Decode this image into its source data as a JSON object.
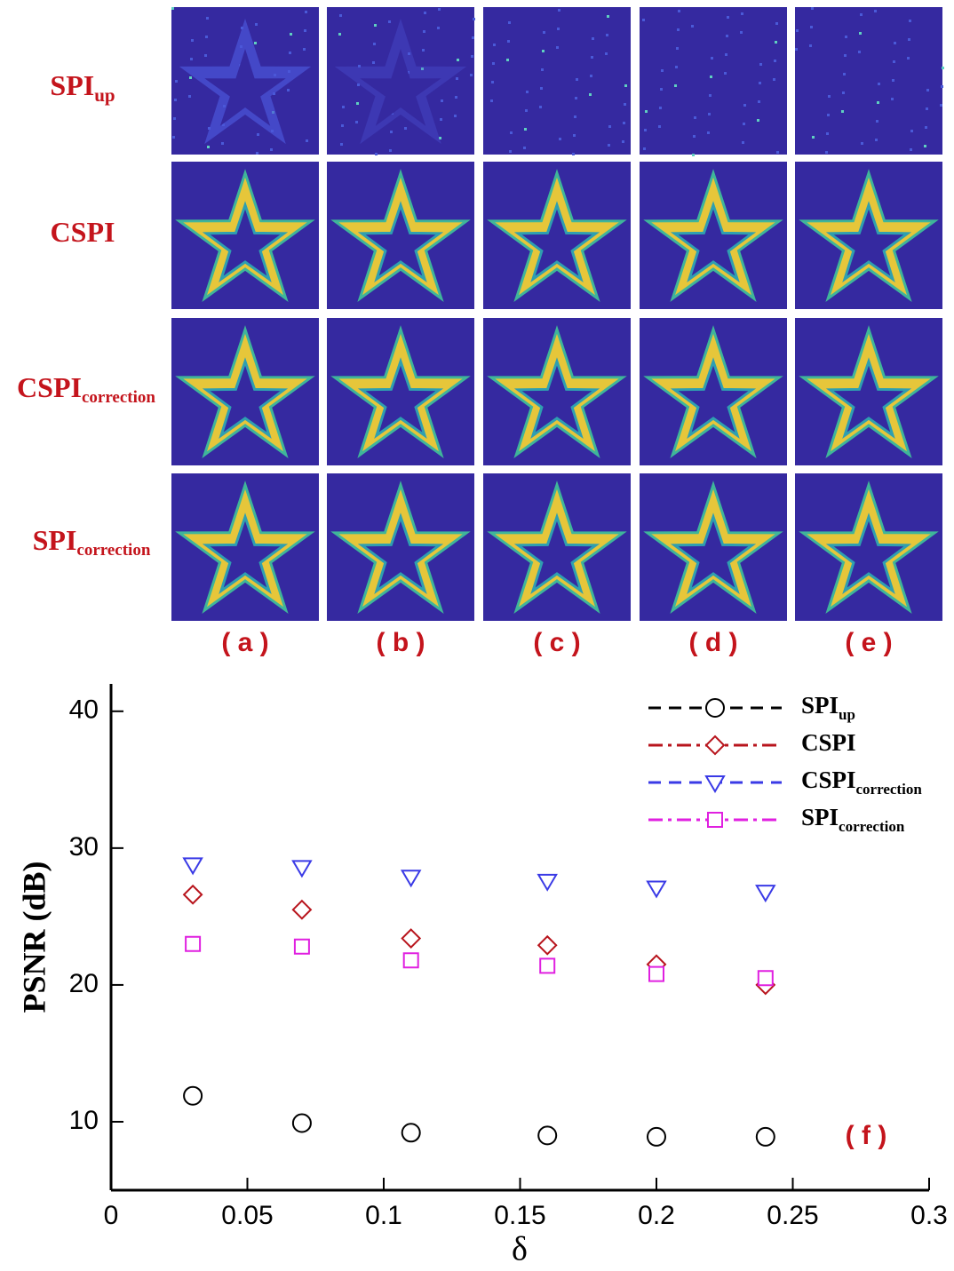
{
  "figure": {
    "row_labels": [
      {
        "main": "SPI",
        "sub": "up"
      },
      {
        "main": "CSPI",
        "sub": null
      },
      {
        "main": "CSPI",
        "sub": "correction"
      },
      {
        "main": "SPI",
        "sub": "correction"
      }
    ],
    "column_labels": [
      "( a )",
      "( b )",
      "( c )",
      "( d )",
      "( e )"
    ]
  },
  "chart_data": {
    "type": "line",
    "annotation": "( f )",
    "xlabel": "δ",
    "ylabel": "PSNR (dB)",
    "x": [
      0.03,
      0.07,
      0.11,
      0.16,
      0.2,
      0.24
    ],
    "xlim": [
      0,
      0.3
    ],
    "xticks": [
      0,
      0.05,
      0.1,
      0.15,
      0.2,
      0.25,
      0.3
    ],
    "ylim": [
      5,
      42
    ],
    "yticks": [
      10,
      20,
      30,
      40
    ],
    "grid": false,
    "legend": "upper right",
    "series": [
      {
        "name": "SPI",
        "subscript": "up",
        "color": "#000000",
        "marker": "circle",
        "linestyle": "dashed",
        "values": [
          11.9,
          9.9,
          9.2,
          9.0,
          8.9,
          8.9
        ]
      },
      {
        "name": "CSPI",
        "subscript": null,
        "color": "#b8141c",
        "marker": "diamond",
        "linestyle": "dashdot",
        "values": [
          26.6,
          25.5,
          23.4,
          22.9,
          21.5,
          20.0
        ]
      },
      {
        "name": "CSPI",
        "subscript": "correction",
        "color": "#3a3ae6",
        "marker": "triangle-down",
        "linestyle": "dashed",
        "values": [
          28.8,
          28.6,
          27.9,
          27.6,
          27.1,
          26.8
        ]
      },
      {
        "name": "SPI",
        "subscript": "correction",
        "color": "#e020e0",
        "marker": "square",
        "linestyle": "dashdot",
        "values": [
          23.0,
          22.8,
          21.8,
          21.4,
          20.8,
          20.5
        ]
      }
    ]
  }
}
